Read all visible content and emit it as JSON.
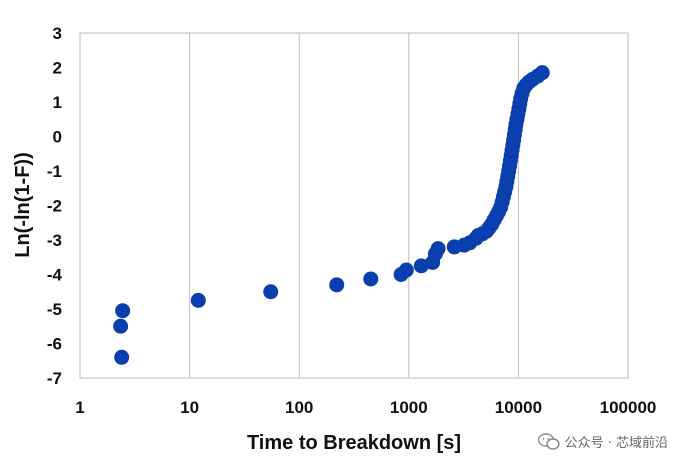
{
  "chart_data": {
    "type": "scatter",
    "xlabel": "Time to Breakdown [s]",
    "ylabel": "Ln(-ln(1-F))",
    "x_scale": "log",
    "xlim": [
      1,
      100000
    ],
    "ylim": [
      -7,
      3
    ],
    "x_ticks": [
      "1",
      "10",
      "100",
      "1000",
      "10000",
      "100000"
    ],
    "y_ticks": [
      "3",
      "2",
      "1",
      "0",
      "-1",
      "-2",
      "-3",
      "-4",
      "-5",
      "-6",
      "-7"
    ],
    "grid": "vertical",
    "marker_color": "#0b3fae",
    "series": [
      {
        "points": [
          [
            2.4,
            -6.4
          ],
          [
            2.35,
            -5.5
          ],
          [
            2.45,
            -5.05
          ],
          [
            12,
            -4.75
          ],
          [
            55,
            -4.5
          ],
          [
            220,
            -4.3
          ],
          [
            450,
            -4.13
          ],
          [
            850,
            -4.0
          ],
          [
            950,
            -3.87
          ],
          [
            1300,
            -3.75
          ],
          [
            1650,
            -3.65
          ],
          [
            1750,
            -3.4
          ],
          [
            1850,
            -3.25
          ],
          [
            2600,
            -3.2
          ],
          [
            3200,
            -3.15
          ],
          [
            3600,
            -3.08
          ],
          [
            4100,
            -2.95
          ],
          [
            4300,
            -2.87
          ],
          [
            4700,
            -2.82
          ],
          [
            5100,
            -2.75
          ],
          [
            5400,
            -2.65
          ],
          [
            5700,
            -2.55
          ],
          [
            6000,
            -2.42
          ],
          [
            6300,
            -2.3
          ],
          [
            6600,
            -2.18
          ],
          [
            6900,
            -2.05
          ],
          [
            7100,
            -1.9
          ],
          [
            7300,
            -1.75
          ],
          [
            7500,
            -1.6
          ],
          [
            7700,
            -1.45
          ],
          [
            7850,
            -1.3
          ],
          [
            8000,
            -1.15
          ],
          [
            8150,
            -1.0
          ],
          [
            8300,
            -0.85
          ],
          [
            8450,
            -0.7
          ],
          [
            8600,
            -0.55
          ],
          [
            8750,
            -0.4
          ],
          [
            8900,
            -0.25
          ],
          [
            9050,
            -0.1
          ],
          [
            9200,
            0.05
          ],
          [
            9350,
            0.2
          ],
          [
            9500,
            0.35
          ],
          [
            9700,
            0.5
          ],
          [
            9900,
            0.65
          ],
          [
            10100,
            0.8
          ],
          [
            10300,
            0.95
          ],
          [
            10500,
            1.1
          ],
          [
            10800,
            1.25
          ],
          [
            11200,
            1.4
          ],
          [
            11800,
            1.5
          ],
          [
            12500,
            1.58
          ],
          [
            13500,
            1.66
          ],
          [
            15000,
            1.75
          ],
          [
            16500,
            1.85
          ]
        ]
      }
    ]
  },
  "watermark": {
    "text": "公众号 · 芯域前沿"
  }
}
